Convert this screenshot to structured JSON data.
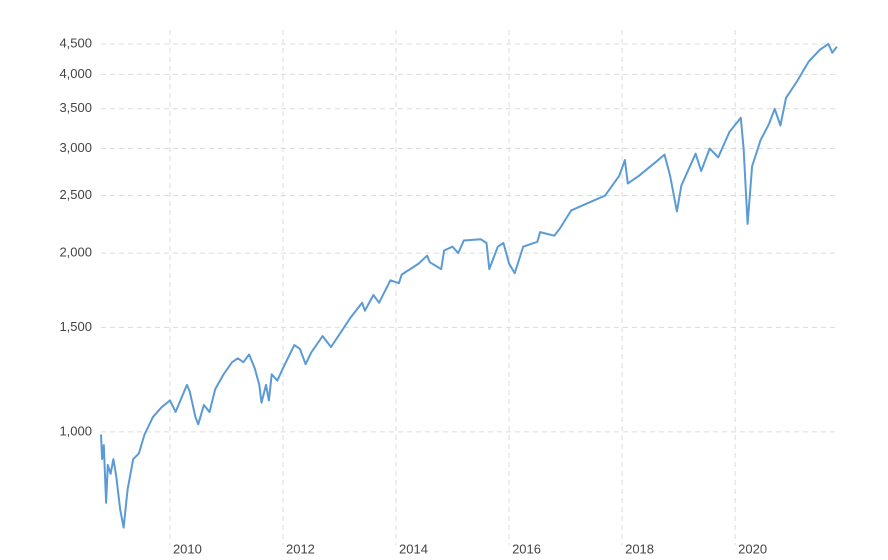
{
  "chart_data": {
    "type": "line",
    "log_y": true,
    "grid": true,
    "xlim": [
      2008.78,
      2021.82
    ],
    "xticks": [
      2010,
      2012,
      2014,
      2016,
      2018,
      2020
    ],
    "ylim": [
      645,
      4750
    ],
    "yticks": [
      {
        "value": 1000,
        "label": "1,000"
      },
      {
        "value": 1500,
        "label": "1,500"
      },
      {
        "value": 2000,
        "label": "2,000"
      },
      {
        "value": 2500,
        "label": "2,500"
      },
      {
        "value": 3000,
        "label": "3,000"
      },
      {
        "value": 3500,
        "label": "3,500"
      },
      {
        "value": 4000,
        "label": "4,000"
      },
      {
        "value": 4500,
        "label": "4,500"
      }
    ],
    "color": "#5b9bd5",
    "x": [
      2008.78,
      2008.8,
      2008.83,
      2008.87,
      2008.9,
      2008.95,
      2009.0,
      2009.05,
      2009.12,
      2009.18,
      2009.25,
      2009.35,
      2009.45,
      2009.55,
      2009.7,
      2009.85,
      2010.0,
      2010.1,
      2010.3,
      2010.35,
      2010.45,
      2010.5,
      2010.6,
      2010.7,
      2010.8,
      2010.95,
      2011.1,
      2011.2,
      2011.3,
      2011.4,
      2011.5,
      2011.58,
      2011.62,
      2011.7,
      2011.75,
      2011.8,
      2011.9,
      2012.0,
      2012.2,
      2012.3,
      2012.4,
      2012.5,
      2012.7,
      2012.85,
      2013.0,
      2013.2,
      2013.4,
      2013.45,
      2013.6,
      2013.7,
      2013.9,
      2014.05,
      2014.1,
      2014.4,
      2014.55,
      2014.6,
      2014.8,
      2014.85,
      2015.0,
      2015.1,
      2015.2,
      2015.5,
      2015.6,
      2015.65,
      2015.8,
      2015.9,
      2016.0,
      2016.1,
      2016.25,
      2016.5,
      2016.55,
      2016.8,
      2016.9,
      2017.1,
      2017.4,
      2017.7,
      2017.95,
      2018.05,
      2018.1,
      2018.3,
      2018.6,
      2018.75,
      2018.85,
      2018.97,
      2019.05,
      2019.3,
      2019.4,
      2019.55,
      2019.7,
      2019.9,
      2020.1,
      2020.15,
      2020.22,
      2020.3,
      2020.45,
      2020.6,
      2020.7,
      2020.8,
      2020.9,
      2021.1,
      2021.3,
      2021.5,
      2021.65,
      2021.72,
      2021.8
    ],
    "values": [
      990,
      900,
      950,
      760,
      880,
      850,
      900,
      840,
      740,
      690,
      800,
      900,
      920,
      990,
      1060,
      1100,
      1130,
      1080,
      1200,
      1170,
      1060,
      1030,
      1110,
      1080,
      1180,
      1250,
      1310,
      1330,
      1310,
      1350,
      1280,
      1200,
      1120,
      1200,
      1130,
      1250,
      1220,
      1280,
      1400,
      1380,
      1300,
      1360,
      1450,
      1390,
      1460,
      1560,
      1650,
      1600,
      1700,
      1650,
      1800,
      1780,
      1840,
      1920,
      1980,
      1930,
      1880,
      2020,
      2050,
      2000,
      2100,
      2110,
      2080,
      1880,
      2050,
      2080,
      1920,
      1850,
      2050,
      2090,
      2170,
      2140,
      2200,
      2360,
      2430,
      2500,
      2700,
      2870,
      2620,
      2700,
      2850,
      2930,
      2700,
      2350,
      2600,
      2940,
      2750,
      3000,
      2900,
      3200,
      3380,
      3000,
      2240,
      2800,
      3100,
      3300,
      3500,
      3280,
      3650,
      3900,
      4200,
      4400,
      4500,
      4350,
      4450
    ]
  }
}
